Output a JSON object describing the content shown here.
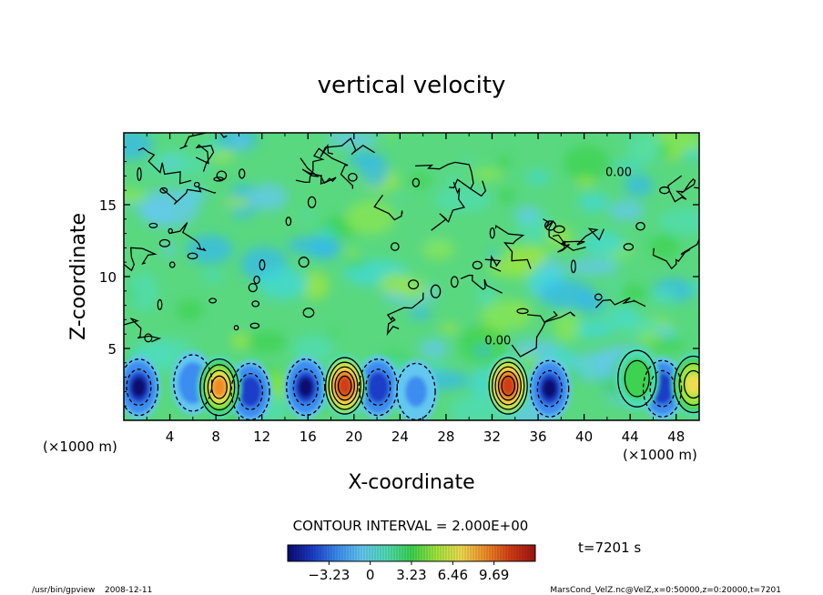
{
  "chart_data": {
    "type": "heatmap",
    "title": "vertical velocity",
    "xlabel": "X-coordinate",
    "ylabel": "Z-coordinate",
    "x_unit": "(×1000 m)",
    "x_unit_right": "(×1000 m)",
    "xlim": [
      0,
      50
    ],
    "ylim": [
      0,
      20
    ],
    "x_ticks": [
      4,
      8,
      12,
      16,
      20,
      24,
      28,
      32,
      36,
      40,
      44,
      48
    ],
    "y_ticks": [
      5,
      10,
      15
    ],
    "contour_interval_label": "CONTOUR INTERVAL = 2.000E+00",
    "contour_labels": [
      {
        "text": "0.00",
        "x": 43.0,
        "z": 17.0
      },
      {
        "text": "0.00",
        "x": 32.5,
        "z": 5.3
      }
    ],
    "colorbar": {
      "ticks": [
        -3.23,
        0,
        3.23,
        6.46,
        9.69
      ],
      "tick_labels": [
        "−3.23",
        "0",
        "3.23",
        "6.46",
        "9.69"
      ],
      "range": [
        -6.46,
        12.92
      ],
      "colors": [
        "#0a0a6e",
        "#1a3cc8",
        "#3c8cf0",
        "#64c8f0",
        "#50dcb4",
        "#3cd250",
        "#a0e63c",
        "#f0dc50",
        "#f08c28",
        "#d23c14",
        "#a01414"
      ]
    },
    "updrafts": [
      {
        "x": 8.3,
        "z": 2.3,
        "peak": 9.5
      },
      {
        "x": 19.2,
        "z": 2.4,
        "peak": 11.0
      },
      {
        "x": 33.4,
        "z": 2.4,
        "peak": 10.5
      },
      {
        "x": 49.5,
        "z": 2.5,
        "peak": 7.0
      },
      {
        "x": 44.6,
        "z": 2.9,
        "peak": 4.0
      }
    ],
    "downdrafts": [
      {
        "x": 1.3,
        "z": 2.3,
        "peak": -5.5
      },
      {
        "x": 6.0,
        "z": 2.6,
        "peak": -3.5
      },
      {
        "x": 11.0,
        "z": 2.0,
        "peak": -5.0
      },
      {
        "x": 15.8,
        "z": 2.3,
        "peak": -5.5
      },
      {
        "x": 22.1,
        "z": 2.3,
        "peak": -5.0
      },
      {
        "x": 25.4,
        "z": 2.0,
        "peak": -2.5
      },
      {
        "x": 37.0,
        "z": 2.2,
        "peak": -5.5
      },
      {
        "x": 46.8,
        "z": 2.2,
        "peak": -5.0
      }
    ]
  },
  "annotations": {
    "time": "t=7201 s",
    "program": "/usr/bin/gpview",
    "date": "2008-12-11",
    "source": "MarsCond_VelZ.nc@VelZ,x=0:50000,z=0:20000,t=7201"
  }
}
